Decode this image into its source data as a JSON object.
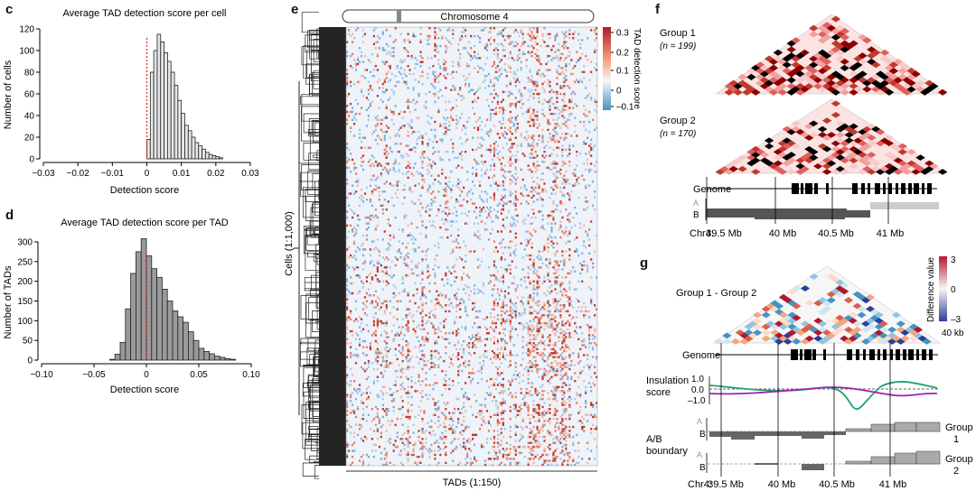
{
  "panel_c": {
    "label": "c",
    "chart_data": {
      "type": "histogram",
      "title": "Average TAD detection score per cell",
      "xlabel": "Detection score",
      "ylabel": "Number of cells",
      "xlim": [
        -0.03,
        0.03
      ],
      "ylim": [
        0,
        120
      ],
      "xticks": [
        "-0.03",
        "-0.02",
        "-0.01",
        "0",
        "0.01",
        "0.02",
        "0.03"
      ],
      "yticks": [
        "0",
        "20",
        "40",
        "60",
        "80",
        "100",
        "120"
      ],
      "bin_width": 0.001,
      "bin_starts": [
        0.0,
        0.001,
        0.002,
        0.003,
        0.004,
        0.005,
        0.006,
        0.007,
        0.008,
        0.009,
        0.01,
        0.011,
        0.012,
        0.013,
        0.014,
        0.015,
        0.016,
        0.017,
        0.018,
        0.019,
        0.02,
        0.021
      ],
      "counts": [
        18,
        80,
        100,
        115,
        108,
        98,
        90,
        80,
        68,
        54,
        42,
        31,
        26,
        20,
        15,
        12,
        9,
        6,
        4,
        3,
        2,
        1
      ],
      "reference_line": 0,
      "bar_color": "#e6e6e6"
    }
  },
  "panel_d": {
    "label": "d",
    "chart_data": {
      "type": "histogram",
      "title": "Average TAD detection score per TAD",
      "xlabel": "Detection score",
      "ylabel": "Number of TADs",
      "xlim": [
        -0.1,
        0.1
      ],
      "ylim": [
        0,
        300
      ],
      "xticks": [
        "-0.10",
        "-0.05",
        "0",
        "0.05",
        "0.10"
      ],
      "yticks": [
        "0",
        "50",
        "100",
        "150",
        "200",
        "250",
        "300"
      ],
      "bin_width": 0.005,
      "bin_starts": [
        -0.035,
        -0.03,
        -0.025,
        -0.02,
        -0.015,
        -0.01,
        -0.005,
        0.0,
        0.005,
        0.01,
        0.015,
        0.02,
        0.025,
        0.03,
        0.035,
        0.04,
        0.045,
        0.05,
        0.055,
        0.06,
        0.065,
        0.07,
        0.075,
        0.08
      ],
      "counts": [
        2,
        15,
        45,
        130,
        220,
        275,
        308,
        265,
        232,
        210,
        180,
        150,
        125,
        110,
        96,
        72,
        50,
        30,
        22,
        16,
        10,
        7,
        4,
        2
      ],
      "reference_line": 0,
      "bar_color": "#9a9a9a"
    }
  },
  "panel_e": {
    "label": "e",
    "chromosome_label": "Chromosome 4",
    "ylabel": "Cells (1:1,000)",
    "xlabel": "TADs (1:150)",
    "colorbar_title": "TAD detection score",
    "colorbar_ticks": [
      "0.3",
      "0.2",
      "0.1",
      "0",
      "–0.1"
    ],
    "colors": {
      "high": "#c0392b",
      "mid": "#f5f7fa",
      "low": "#6a9fd4"
    }
  },
  "panel_f": {
    "label": "f",
    "group1": {
      "name": "Group 1",
      "n": "(n = 199)"
    },
    "group2": {
      "name": "Group 2",
      "n": "(n = 170)"
    },
    "genome_label": "Genome",
    "track_a": "A",
    "track_b": "B",
    "axis_prefix": "Chr4:",
    "axis_ticks": [
      "39.5 Mb",
      "40 Mb",
      "40.5 Mb",
      "41 Mb"
    ]
  },
  "panel_g": {
    "label": "g",
    "title": "Group 1 - Group 2",
    "colorbar_title": "Difference value",
    "colorbar_ticks": [
      "3",
      "0",
      "–3"
    ],
    "scale_label": "40 kb",
    "genome_label": "Genome",
    "insulation_label_1": "Insulation",
    "insulation_label_2": "score",
    "insulation_ticks": [
      "1.0",
      "0.0",
      "–1.0"
    ],
    "ab_label_1": "A/B",
    "ab_label_2": "boundary",
    "track_a": "A",
    "track_b": "B",
    "group1_label_1": "Group",
    "group1_label_2": "1",
    "group2_label_1": "Group",
    "group2_label_2": "2",
    "axis_prefix": "Chr4:",
    "axis_ticks": [
      "39.5 Mb",
      "40 Mb",
      "40.5 Mb",
      "41 Mb"
    ],
    "series": [
      {
        "name": "Group 1",
        "color": "#1aa36b"
      },
      {
        "name": "Group 2",
        "color": "#a020b0"
      }
    ]
  }
}
